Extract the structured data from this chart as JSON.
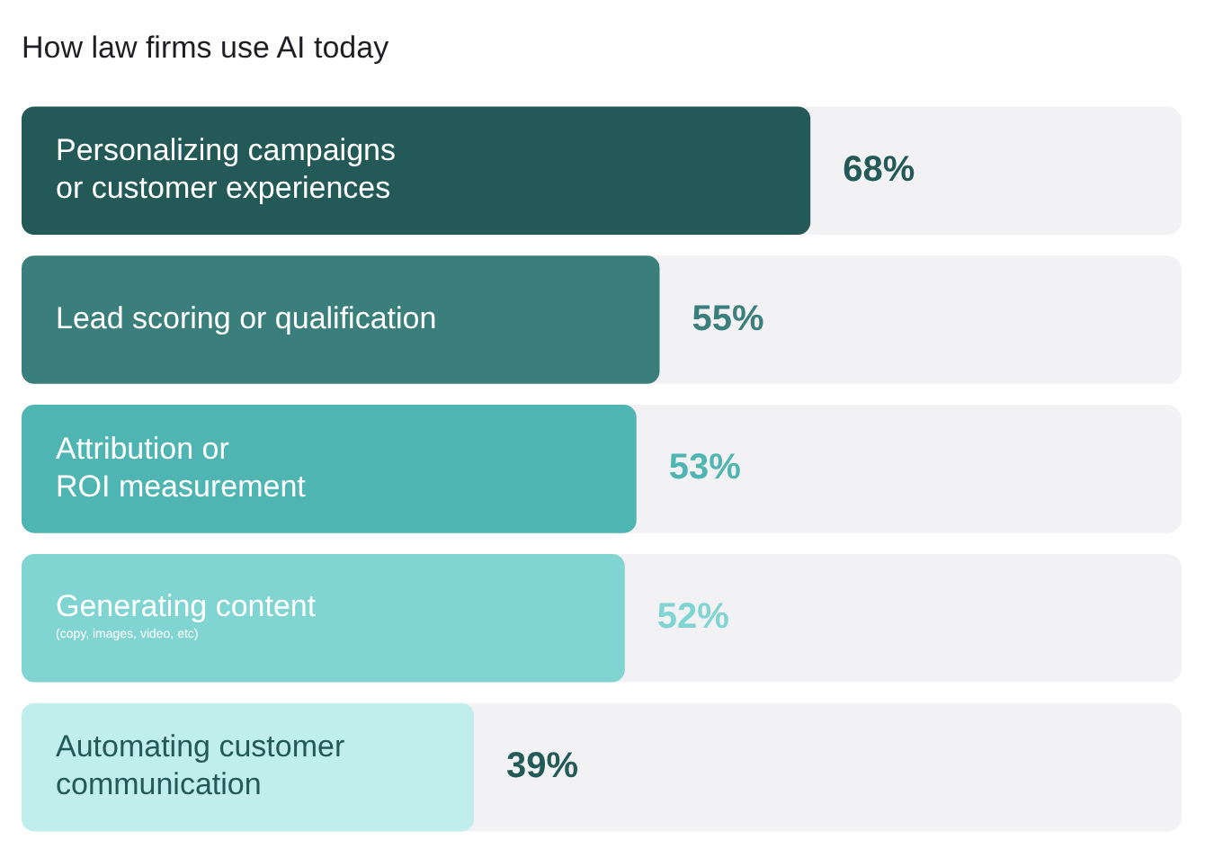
{
  "chart_data": {
    "type": "bar",
    "orientation": "horizontal",
    "title": "How law firms use AI today",
    "categories": [
      "Personalizing campaigns\nor customer experiences",
      "Lead scoring or qualification",
      "Attribution or\nROI measurement",
      "Generating content",
      "Automating customer\ncommunication"
    ],
    "values": [
      68,
      55,
      53,
      52,
      39
    ],
    "colors": [
      "#235a57",
      "#3a7f7c",
      "#4fb5b2",
      "#80d4d1",
      "#bfeeec"
    ],
    "value_labels": [
      "68%",
      "55%",
      "53%",
      "52%",
      "39%"
    ],
    "annotations": [
      {
        "text": "(copy, images, video, etc)",
        "y": "Generating content"
      }
    ],
    "xlim": [
      0,
      100
    ],
    "tick_labels": false,
    "legend": false
  }
}
